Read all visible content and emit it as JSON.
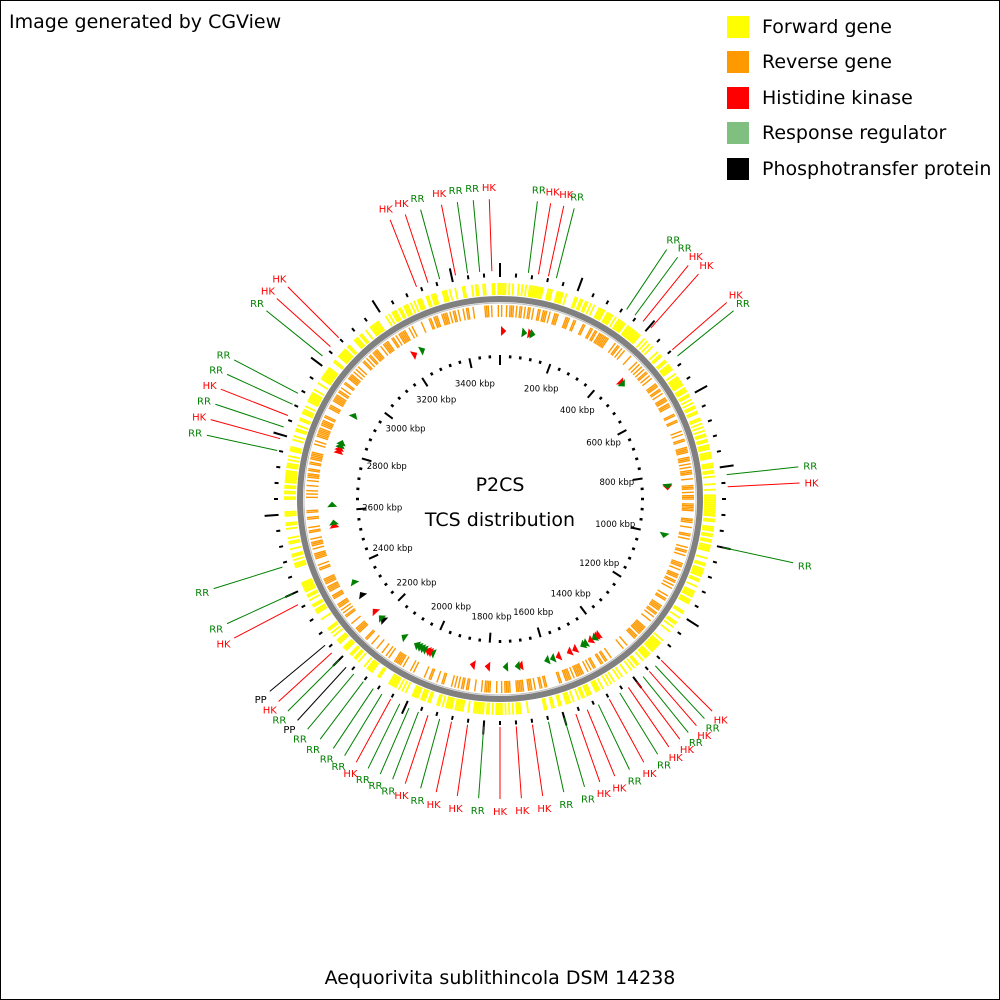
{
  "credit": "Image generated by CGView",
  "legend": [
    {
      "label": "Forward gene",
      "color": "#ffff00"
    },
    {
      "label": "Reverse gene",
      "color": "#ff9900"
    },
    {
      "label": "Histidine kinase",
      "color": "#ff0000"
    },
    {
      "label": "Response regulator",
      "color": "#7fbf7f"
    },
    {
      "label": "Phosphotransfer protein",
      "color": "#000000"
    }
  ],
  "center": {
    "title": "P2CS",
    "subtitle": "TCS distribution"
  },
  "organism": "Aequorivita sublithincola DSM 14238",
  "genome_length_kbp": 3520,
  "axis_labels": [
    "200 kbp",
    "400 kbp",
    "600 kbp",
    "800 kbp",
    "1000 kbp",
    "1200 kbp",
    "1400 kbp",
    "1600 kbp",
    "1800 kbp",
    "2000 kbp",
    "2200 kbp",
    "2400 kbp",
    "2600 kbp",
    "2800 kbp",
    "3000 kbp",
    "3200 kbp",
    "3400 kbp"
  ],
  "type_colors": {
    "HK": "#ff0000",
    "RR": "#008000",
    "PP": "#000000"
  },
  "gene_colors": {
    "forward": "#ffff00",
    "reverse": "#ff9900"
  },
  "backbone_color": "#808080",
  "tcs_genes": [
    {
      "type": "HK",
      "kbp": 10
    },
    {
      "type": "RR",
      "kbp": 80
    },
    {
      "type": "HK",
      "kbp": 100
    },
    {
      "type": "RR",
      "kbp": 108
    },
    {
      "type": "HK",
      "kbp": 450
    },
    {
      "type": "RR",
      "kbp": 458
    },
    {
      "type": "HK",
      "kbp": 840
    },
    {
      "type": "RR",
      "kbp": 836
    },
    {
      "type": "RR",
      "kbp": 1000
    },
    {
      "type": "HK",
      "kbp": 1410
    },
    {
      "type": "HK",
      "kbp": 1418
    },
    {
      "type": "RR",
      "kbp": 1425
    },
    {
      "type": "HK",
      "kbp": 1440
    },
    {
      "type": "RR",
      "kbp": 1460
    },
    {
      "type": "RR",
      "kbp": 1470
    },
    {
      "type": "HK",
      "kbp": 1500
    },
    {
      "type": "HK",
      "kbp": 1520
    },
    {
      "type": "HK",
      "kbp": 1560
    },
    {
      "type": "RR",
      "kbp": 1580
    },
    {
      "type": "RR",
      "kbp": 1600
    },
    {
      "type": "HK",
      "kbp": 1690
    },
    {
      "type": "RR",
      "kbp": 1700
    },
    {
      "type": "RR",
      "kbp": 1740
    },
    {
      "type": "HK",
      "kbp": 1800
    },
    {
      "type": "HK",
      "kbp": 1850
    },
    {
      "type": "RR",
      "kbp": 1990
    },
    {
      "type": "HK",
      "kbp": 2000
    },
    {
      "type": "HK",
      "kbp": 2008
    },
    {
      "type": "RR",
      "kbp": 2020
    },
    {
      "type": "RR",
      "kbp": 2030
    },
    {
      "type": "RR",
      "kbp": 2040
    },
    {
      "type": "RR",
      "kbp": 2050
    },
    {
      "type": "RR",
      "kbp": 2100
    },
    {
      "type": "PP",
      "kbp": 2190
    },
    {
      "type": "RR",
      "kbp": 2200
    },
    {
      "type": "HK",
      "kbp": 2230
    },
    {
      "type": "PP",
      "kbp": 2300
    },
    {
      "type": "RR",
      "kbp": 2350
    },
    {
      "type": "HK",
      "kbp": 2550
    },
    {
      "type": "RR",
      "kbp": 2560
    },
    {
      "type": "RR",
      "kbp": 2620
    },
    {
      "type": "HK",
      "kbp": 2800
    },
    {
      "type": "HK",
      "kbp": 2810
    },
    {
      "type": "RR",
      "kbp": 2820
    },
    {
      "type": "RR",
      "kbp": 2830
    },
    {
      "type": "RR",
      "kbp": 2930
    },
    {
      "type": "HK",
      "kbp": 3220
    },
    {
      "type": "RR",
      "kbp": 3250
    }
  ],
  "callouts": [
    {
      "label": "HK",
      "type": "HK",
      "kbp": 3310
    },
    {
      "label": "HK",
      "type": "HK",
      "kbp": 3340
    },
    {
      "label": "RR",
      "type": "RR",
      "kbp": 3370
    },
    {
      "label": "HK",
      "type": "HK",
      "kbp": 3410
    },
    {
      "label": "RR",
      "type": "RR",
      "kbp": 3440
    },
    {
      "label": "RR",
      "type": "RR",
      "kbp": 3470
    },
    {
      "label": "HK",
      "type": "HK",
      "kbp": 3500
    },
    {
      "label": "RR",
      "type": "RR",
      "kbp": 70
    },
    {
      "label": "HK",
      "type": "HK",
      "kbp": 95
    },
    {
      "label": "HK",
      "type": "HK",
      "kbp": 120
    },
    {
      "label": "RR",
      "type": "RR",
      "kbp": 140
    },
    {
      "label": "RR",
      "type": "RR",
      "kbp": 330
    },
    {
      "label": "RR",
      "type": "RR",
      "kbp": 355
    },
    {
      "label": "HK",
      "type": "HK",
      "kbp": 380
    },
    {
      "label": "HK",
      "type": "HK",
      "kbp": 405
    },
    {
      "label": "HK",
      "type": "HK",
      "kbp": 480
    },
    {
      "label": "RR",
      "type": "RR",
      "kbp": 500
    },
    {
      "label": "RR",
      "type": "RR",
      "kbp": 820
    },
    {
      "label": "HK",
      "type": "HK",
      "kbp": 850
    },
    {
      "label": "RR",
      "type": "RR",
      "kbp": 1000
    },
    {
      "label": "HK",
      "type": "HK",
      "kbp": 1320
    },
    {
      "label": "RR",
      "type": "RR",
      "kbp": 1340
    },
    {
      "label": "HK",
      "type": "HK",
      "kbp": 1360
    },
    {
      "label": "RR",
      "type": "RR",
      "kbp": 1380
    },
    {
      "label": "HK",
      "type": "HK",
      "kbp": 1400
    },
    {
      "label": "HK",
      "type": "HK",
      "kbp": 1425
    },
    {
      "label": "RR",
      "type": "RR",
      "kbp": 1450
    },
    {
      "label": "HK",
      "type": "HK",
      "kbp": 1480
    },
    {
      "label": "RR",
      "type": "RR",
      "kbp": 1510
    },
    {
      "label": "HK",
      "type": "HK",
      "kbp": 1540
    },
    {
      "label": "HK",
      "type": "HK",
      "kbp": 1570
    },
    {
      "label": "RR",
      "type": "RR",
      "kbp": 1600
    },
    {
      "label": "RR",
      "type": "RR",
      "kbp": 1640
    },
    {
      "label": "HK",
      "type": "HK",
      "kbp": 1680
    },
    {
      "label": "HK",
      "type": "HK",
      "kbp": 1720
    },
    {
      "label": "HK",
      "type": "HK",
      "kbp": 1760
    },
    {
      "label": "RR",
      "type": "RR",
      "kbp": 1800
    },
    {
      "label": "HK",
      "type": "HK",
      "kbp": 1840
    },
    {
      "label": "HK",
      "type": "HK",
      "kbp": 1880
    },
    {
      "label": "RR",
      "type": "RR",
      "kbp": 1910
    },
    {
      "label": "HK",
      "type": "HK",
      "kbp": 1940
    },
    {
      "label": "RR",
      "type": "RR",
      "kbp": 1965
    },
    {
      "label": "RR",
      "type": "RR",
      "kbp": 1990
    },
    {
      "label": "RR",
      "type": "RR",
      "kbp": 2015
    },
    {
      "label": "HK",
      "type": "HK",
      "kbp": 2040
    },
    {
      "label": "RR",
      "type": "RR",
      "kbp": 2065
    },
    {
      "label": "RR",
      "type": "RR",
      "kbp": 2090
    },
    {
      "label": "RR",
      "type": "RR",
      "kbp": 2120
    },
    {
      "label": "RR",
      "type": "RR",
      "kbp": 2150
    },
    {
      "label": "PP",
      "type": "PP",
      "kbp": 2175
    },
    {
      "label": "RR",
      "type": "RR",
      "kbp": 2200
    },
    {
      "label": "HK",
      "type": "HK",
      "kbp": 2225
    },
    {
      "label": "PP",
      "type": "PP",
      "kbp": 2250
    },
    {
      "label": "HK",
      "type": "HK",
      "kbp": 2370
    },
    {
      "label": "RR",
      "type": "RR",
      "kbp": 2400
    },
    {
      "label": "RR",
      "type": "RR",
      "kbp": 2470
    },
    {
      "label": "RR",
      "type": "RR",
      "kbp": 2760
    },
    {
      "label": "HK",
      "type": "HK",
      "kbp": 2790
    },
    {
      "label": "RR",
      "type": "RR",
      "kbp": 2820
    },
    {
      "label": "HK",
      "type": "HK",
      "kbp": 2850
    },
    {
      "label": "RR",
      "type": "RR",
      "kbp": 2880
    },
    {
      "label": "RR",
      "type": "RR",
      "kbp": 2910
    },
    {
      "label": "RR",
      "type": "RR",
      "kbp": 3020
    },
    {
      "label": "HK",
      "type": "HK",
      "kbp": 3050
    },
    {
      "label": "HK",
      "type": "HK",
      "kbp": 3080
    }
  ]
}
